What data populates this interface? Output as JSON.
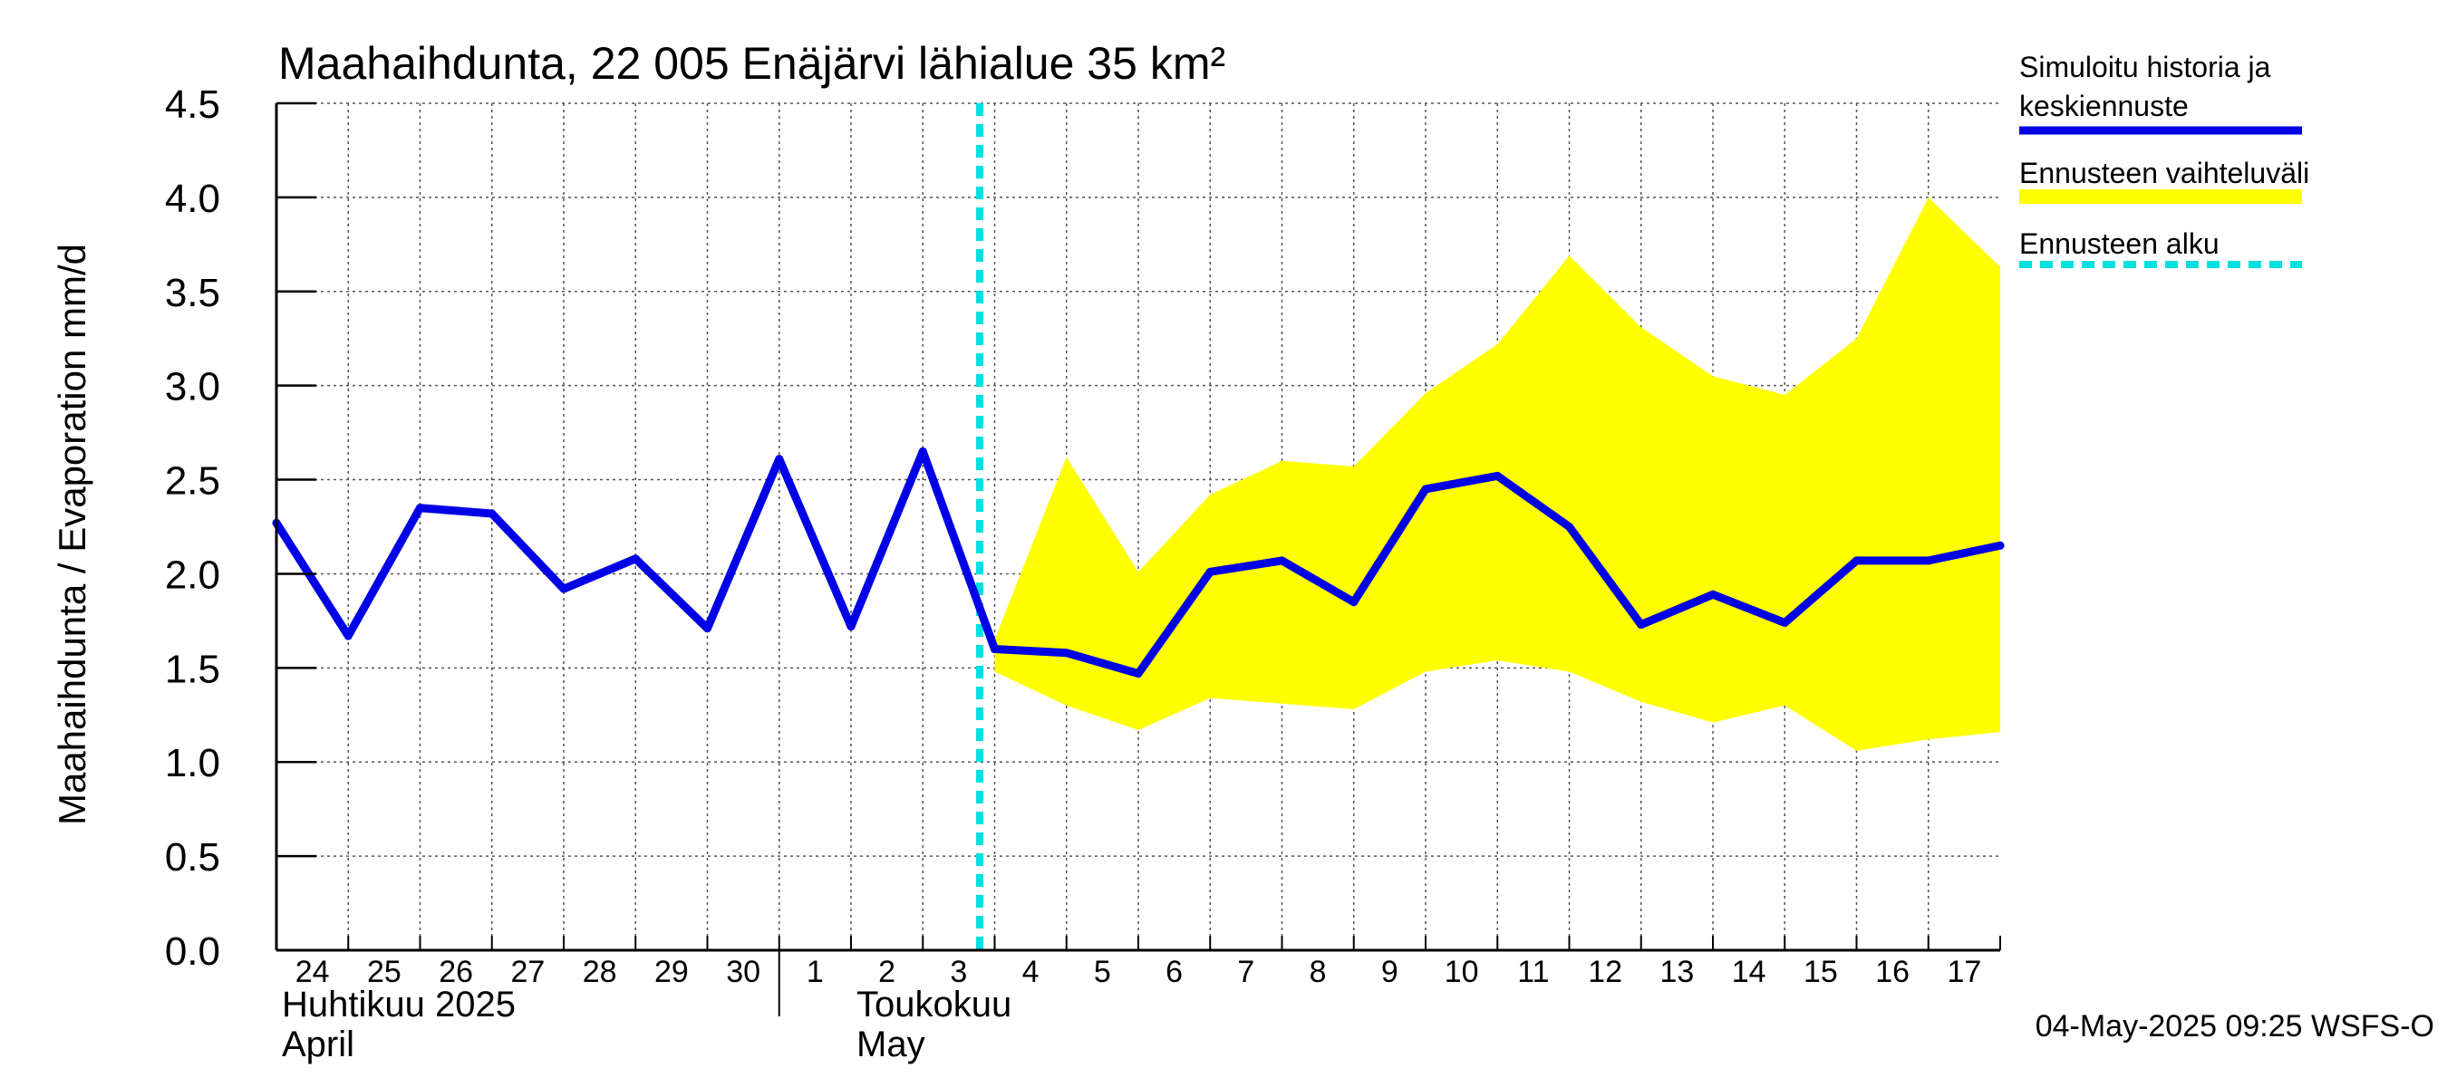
{
  "chart_data": {
    "type": "line",
    "title": "Maahaihdunta, 22 005 Enäjärvi lähialue 35 km²",
    "ylabel": "Maahaihdunta / Evaporation   mm/d",
    "ylim": [
      0,
      4.5
    ],
    "yticks": [
      "0.0",
      "0.5",
      "1.0",
      "1.5",
      "2.0",
      "2.5",
      "3.0",
      "3.5",
      "4.0",
      "4.5"
    ],
    "x_dates": [
      "2025-04-24",
      "2025-04-25",
      "2025-04-26",
      "2025-04-27",
      "2025-04-28",
      "2025-04-29",
      "2025-04-30",
      "2025-05-01",
      "2025-05-02",
      "2025-05-03",
      "2025-05-04",
      "2025-05-05",
      "2025-05-06",
      "2025-05-07",
      "2025-05-08",
      "2025-05-09",
      "2025-05-10",
      "2025-05-11",
      "2025-05-12",
      "2025-05-13",
      "2025-05-14",
      "2025-05-15",
      "2025-05-16",
      "2025-05-17",
      "2025-05-18"
    ],
    "xtick_labels": [
      "24",
      "25",
      "26",
      "27",
      "28",
      "29",
      "30",
      "1",
      "2",
      "3",
      "4",
      "5",
      "6",
      "7",
      "8",
      "9",
      "10",
      "11",
      "12",
      "13",
      "14",
      "15",
      "16",
      "17"
    ],
    "month_labels": [
      {
        "line1": "Huhtikuu  2025",
        "line2": "April",
        "date": "2025-04-24"
      },
      {
        "line1": "Toukokuu",
        "line2": "May",
        "date": "2025-05-02"
      }
    ],
    "series": [
      {
        "name": "Simuloitu historia ja keskiennuste",
        "color": "#0000e6",
        "x": [
          "2025-04-24",
          "2025-04-25",
          "2025-04-26",
          "2025-04-27",
          "2025-04-28",
          "2025-04-29",
          "2025-04-30",
          "2025-05-01",
          "2025-05-02",
          "2025-05-03",
          "2025-05-04",
          "2025-05-05",
          "2025-05-06",
          "2025-05-07",
          "2025-05-08",
          "2025-05-09",
          "2025-05-10",
          "2025-05-11",
          "2025-05-12",
          "2025-05-13",
          "2025-05-14",
          "2025-05-15",
          "2025-05-16",
          "2025-05-17",
          "2025-05-18"
        ],
        "values": [
          2.27,
          1.67,
          2.35,
          2.32,
          1.92,
          2.08,
          1.71,
          2.61,
          1.72,
          2.65,
          1.6,
          1.58,
          1.47,
          2.01,
          2.07,
          1.85,
          2.45,
          2.52,
          2.25,
          1.73,
          1.89,
          1.74,
          2.07,
          2.07,
          2.15
        ]
      }
    ],
    "band": {
      "name": "Ennusteen vaihteluväli",
      "color": "#ffff00",
      "x": [
        "2025-05-04",
        "2025-05-05",
        "2025-05-06",
        "2025-05-07",
        "2025-05-08",
        "2025-05-09",
        "2025-05-10",
        "2025-05-11",
        "2025-05-12",
        "2025-05-13",
        "2025-05-14",
        "2025-05-15",
        "2025-05-16",
        "2025-05-17",
        "2025-05-18"
      ],
      "upper": [
        1.65,
        2.62,
        2.01,
        2.42,
        2.6,
        2.57,
        2.96,
        3.22,
        3.69,
        3.31,
        3.05,
        2.95,
        3.25,
        4.0,
        3.63
      ],
      "lower": [
        1.48,
        1.3,
        1.17,
        1.34,
        1.31,
        1.28,
        1.48,
        1.54,
        1.48,
        1.32,
        1.21,
        1.3,
        1.06,
        1.12,
        1.16
      ]
    },
    "forecast_start": {
      "name": "Ennusteen alku",
      "color": "#00e0e0",
      "x": "2025-05-03T19:00"
    },
    "legend": {
      "placement": "right",
      "entries": [
        {
          "line1": "Simuloitu historia ja",
          "line2": "keskiennuste",
          "color": "#0000e6",
          "style": "solid"
        },
        {
          "line1": "Ennusteen vaihteluväli",
          "line2": "",
          "color": "#ffff00",
          "style": "band"
        },
        {
          "line1": "Ennusteen alku",
          "line2": "",
          "color": "#00e0e0",
          "style": "dashed"
        }
      ]
    },
    "grid": true,
    "footer": "04-May-2025 09:25 WSFS-O"
  }
}
